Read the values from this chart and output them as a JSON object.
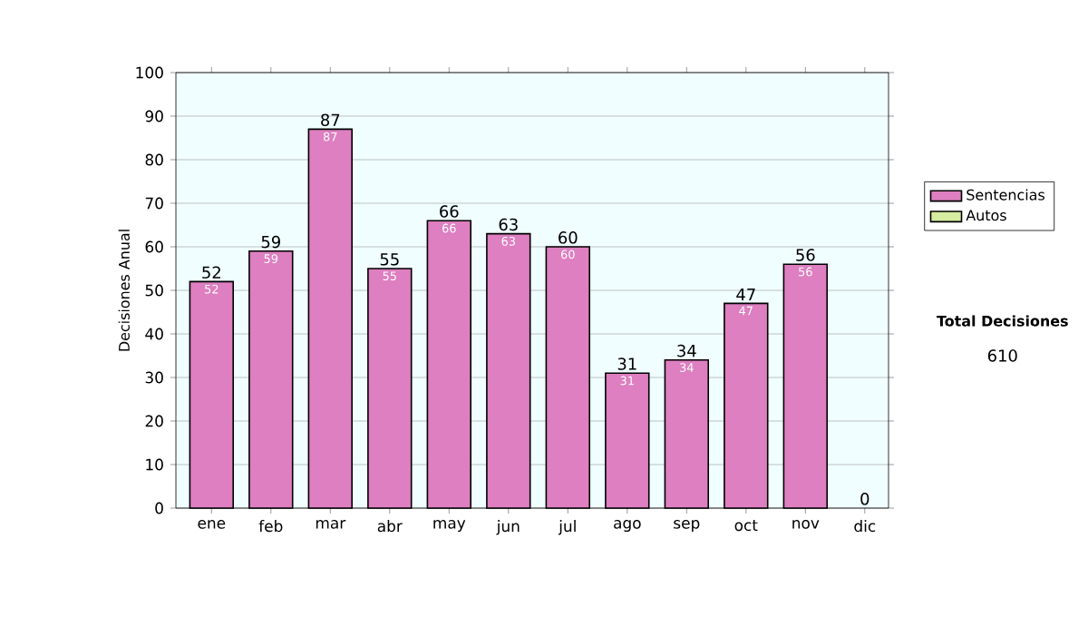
{
  "chart_data": {
    "type": "bar",
    "ylabel": "Decisiones Anual",
    "categories": [
      "ene",
      "feb",
      "mar",
      "abr",
      "may",
      "jun",
      "jul",
      "ago",
      "sep",
      "oct",
      "nov",
      "dic"
    ],
    "stacked": true,
    "series": [
      {
        "name": "Sentencias",
        "color": "#dd7fc0",
        "values": [
          52,
          59,
          87,
          55,
          66,
          63,
          60,
          31,
          34,
          47,
          56,
          0
        ],
        "value_labels": [
          "52",
          "59",
          "87",
          "55",
          "66",
          "63",
          "60",
          "31",
          "34",
          "47",
          "56",
          null
        ]
      },
      {
        "name": "Autos",
        "color": "#d6eca0",
        "values": [
          0,
          0,
          0,
          0,
          0,
          0,
          0,
          0,
          0,
          0,
          0,
          0
        ]
      }
    ],
    "totals": [
      "52",
      "59",
      "87",
      "55",
      "66",
      "63",
      "60",
      "31",
      "34",
      "47",
      "56",
      "0"
    ],
    "ylim": [
      0,
      100
    ],
    "yticks": [
      0,
      10,
      20,
      30,
      40,
      50,
      60,
      70,
      80,
      90,
      100
    ],
    "grid": "y",
    "legend": "right",
    "annotations": [
      "Total Decisiones",
      "610"
    ]
  }
}
